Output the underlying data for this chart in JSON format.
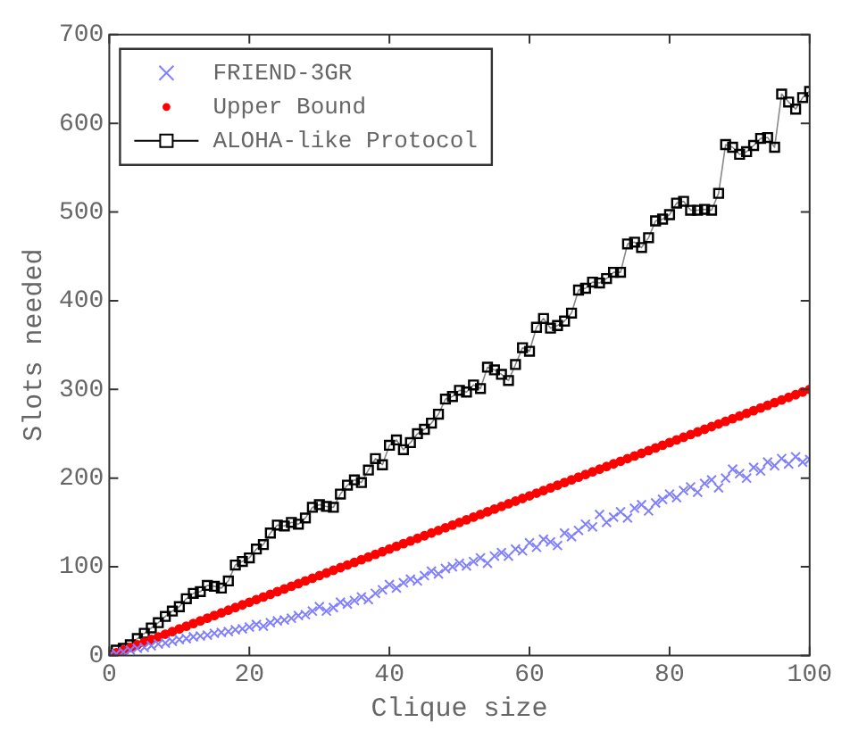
{
  "chart_data": {
    "type": "line",
    "xlabel": "Clique size",
    "ylabel": "Slots needed",
    "xlim": [
      0,
      100
    ],
    "ylim": [
      0,
      700
    ],
    "xticks": [
      0,
      20,
      40,
      60,
      80,
      100
    ],
    "yticks": [
      0,
      100,
      200,
      300,
      400,
      500,
      600,
      700
    ],
    "grid": false,
    "legend": "top left",
    "x": [
      0,
      1,
      2,
      3,
      4,
      5,
      6,
      7,
      8,
      9,
      10,
      11,
      12,
      13,
      14,
      15,
      16,
      17,
      18,
      19,
      20,
      21,
      22,
      23,
      24,
      25,
      26,
      27,
      28,
      29,
      30,
      31,
      32,
      33,
      34,
      35,
      36,
      37,
      38,
      39,
      40,
      41,
      42,
      43,
      44,
      45,
      46,
      47,
      48,
      49,
      50,
      51,
      52,
      53,
      54,
      55,
      56,
      57,
      58,
      59,
      60,
      61,
      62,
      63,
      64,
      65,
      66,
      67,
      68,
      69,
      70,
      71,
      72,
      73,
      74,
      75,
      76,
      77,
      78,
      79,
      80,
      81,
      82,
      83,
      84,
      85,
      86,
      87,
      88,
      89,
      90,
      91,
      92,
      93,
      94,
      95,
      96,
      97,
      98,
      99,
      100
    ],
    "series": [
      {
        "name": "FRIEND-3GR",
        "type": "scatter",
        "marker": "cross",
        "color": "#8080ff",
        "values": [
          0,
          2,
          4,
          6,
          8,
          9,
          11,
          13,
          14,
          16,
          18,
          19,
          21,
          22,
          23,
          25,
          26,
          27,
          29,
          30,
          32,
          35,
          33,
          37,
          39,
          40,
          42,
          45,
          46,
          50,
          55,
          50,
          54,
          60,
          58,
          62,
          66,
          63,
          70,
          74,
          80,
          76,
          82,
          86,
          84,
          90,
          95,
          92,
          98,
          100,
          104,
          101,
          106,
          110,
          104,
          112,
          116,
          112,
          120,
          118,
          127,
          122,
          131,
          128,
          124,
          138,
          134,
          141,
          148,
          145,
          159,
          150,
          156,
          162,
          155,
          166,
          170,
          163,
          172,
          176,
          182,
          178,
          186,
          190,
          184,
          194,
          198,
          189,
          200,
          210,
          205,
          200,
          212,
          208,
          218,
          214,
          222,
          216,
          224,
          218,
          221
        ]
      },
      {
        "name": "Upper Bound",
        "type": "scatter",
        "marker": "circle",
        "color": "#ff0000",
        "values": [
          0,
          3,
          6,
          9,
          12,
          15,
          18,
          21,
          24,
          27,
          30,
          33,
          36,
          39,
          42,
          45,
          48,
          51,
          54,
          57,
          60,
          63,
          66,
          69,
          72,
          75,
          78,
          81,
          84,
          87,
          90,
          93,
          96,
          99,
          102,
          105,
          108,
          111,
          114,
          117,
          120,
          123,
          126,
          129,
          132,
          135,
          138,
          141,
          144,
          147,
          150,
          153,
          156,
          159,
          162,
          165,
          168,
          171,
          174,
          177,
          180,
          183,
          186,
          189,
          192,
          195,
          198,
          201,
          204,
          207,
          210,
          213,
          216,
          219,
          222,
          225,
          228,
          231,
          234,
          237,
          240,
          243,
          246,
          249,
          252,
          255,
          258,
          261,
          264,
          267,
          270,
          273,
          276,
          279,
          282,
          285,
          288,
          291,
          294,
          297,
          300
        ]
      },
      {
        "name": "ALOHA-like Protocol",
        "marker": "square",
        "color": "#000000",
        "values": [
          0,
          6,
          8,
          12,
          19,
          25,
          31,
          37,
          44,
          50,
          55,
          64,
          70,
          72,
          79,
          78,
          76,
          84,
          102,
          106,
          110,
          120,
          125,
          138,
          147,
          146,
          150,
          148,
          155,
          167,
          170,
          168,
          167,
          182,
          192,
          198,
          195,
          209,
          222,
          215,
          237,
          243,
          232,
          240,
          250,
          255,
          262,
          272,
          289,
          292,
          299,
          297,
          305,
          301,
          325,
          322,
          317,
          310,
          328,
          347,
          343,
          370,
          380,
          369,
          372,
          377,
          386,
          412,
          414,
          421,
          420,
          425,
          432,
          432,
          464,
          466,
          460,
          471,
          490,
          492,
          497,
          510,
          512,
          502,
          502,
          503,
          502,
          521,
          576,
          573,
          565,
          568,
          575,
          583,
          584,
          573,
          633,
          624,
          616,
          629,
          636
        ]
      }
    ]
  }
}
